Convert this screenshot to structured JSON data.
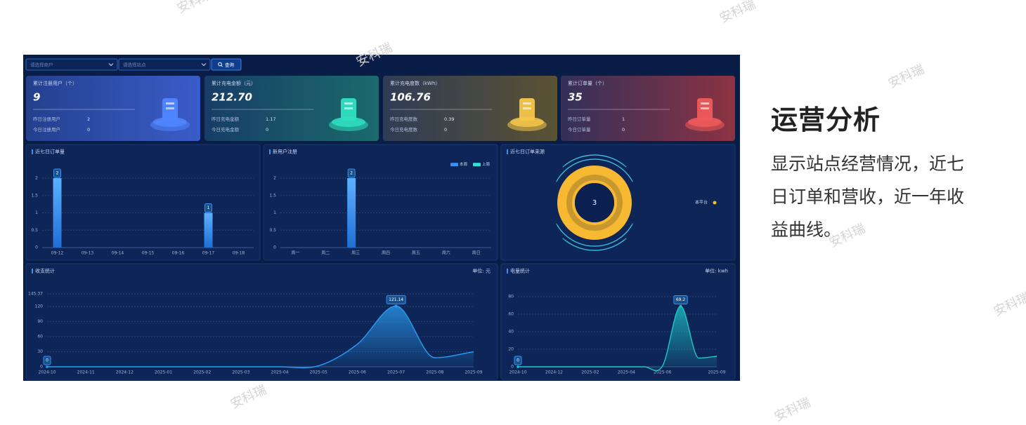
{
  "watermark": "安科瑞",
  "intro": {
    "title": "运营分析",
    "description": "显示站点经营情况，近七日订单和营收，近一年收益曲线。"
  },
  "dashboard": {
    "filters": {
      "merchant": "请选择商户",
      "station": "请选择站点",
      "query": "查询"
    },
    "stats": [
      {
        "title": "累计注册用户（个）",
        "value": "9",
        "rows": [
          {
            "label": "昨日注册用户",
            "value": "2"
          },
          {
            "label": "今日注册用户",
            "value": "0"
          }
        ]
      },
      {
        "title": "累计充电金额（元）",
        "value": "212.70",
        "rows": [
          {
            "label": "昨日充电金额",
            "value": "1.17"
          },
          {
            "label": "今日充电金额",
            "value": "0"
          }
        ]
      },
      {
        "title": "累计充电度数（kWh）",
        "value": "106.76",
        "rows": [
          {
            "label": "昨日充电度数",
            "value": "0.39"
          },
          {
            "label": "今日充电度数",
            "value": "0"
          }
        ]
      },
      {
        "title": "累计订单量（个）",
        "value": "35",
        "rows": [
          {
            "label": "昨日订单量",
            "value": "1"
          },
          {
            "label": "今日订单量",
            "value": "0"
          }
        ]
      }
    ],
    "orders_chart": {
      "type": "bar",
      "title": "近七日订单量",
      "categories": [
        "09-12",
        "09-13",
        "09-14",
        "09-15",
        "09-16",
        "09-17",
        "09-18"
      ],
      "values": [
        2,
        0,
        0,
        0,
        0,
        1,
        0
      ],
      "color": "#3d8ff0",
      "ylim": [
        0,
        2.2
      ],
      "yticks": [
        0,
        0.5,
        1,
        1.5,
        2
      ],
      "grid": true
    },
    "users_chart": {
      "type": "bar",
      "title": "新用户注册",
      "categories": [
        "周一",
        "周二",
        "周三",
        "周四",
        "周五",
        "周六",
        "周日"
      ],
      "series": [
        {
          "name": "本周",
          "color": "#3d8ff0",
          "values": [
            0,
            0,
            2,
            0,
            0,
            0,
            0
          ]
        },
        {
          "name": "上周",
          "color": "#32e0d8",
          "values": [
            0,
            0,
            0,
            0,
            0,
            0,
            0
          ]
        }
      ],
      "ylim": [
        0,
        2.2
      ],
      "yticks": [
        0,
        0.5,
        1,
        1.5,
        2
      ],
      "grid": true,
      "legend": "top-right"
    },
    "source_chart": {
      "type": "pie",
      "title": "近七日订单来源",
      "categories": [
        "本平台"
      ],
      "values": [
        3
      ],
      "colors": [
        "#f7b932"
      ],
      "legend": "right"
    },
    "income_chart": {
      "type": "line",
      "title": "收支统计",
      "unit": "单位: 元",
      "x": [
        "2024-10",
        "2024-11",
        "2024-12",
        "2025-01",
        "2025-02",
        "2025-03",
        "2025-04",
        "2025-05",
        "2025-06",
        "2025-07",
        "2025-08",
        "2025-09"
      ],
      "values": [
        0,
        0,
        0,
        0,
        0,
        0,
        0,
        2,
        45,
        121.14,
        18,
        30
      ],
      "color": "#2a9df4",
      "ylim": [
        0,
        145.37
      ],
      "yticks": [
        0,
        30,
        60,
        90,
        120,
        145.37
      ],
      "grid": true
    },
    "energy_chart": {
      "type": "line",
      "title": "电量统计",
      "unit": "单位: kwh",
      "x": [
        "2024-10",
        null,
        "2024-12",
        null,
        "2025-02",
        null,
        "2025-04",
        null,
        "2025-06",
        null,
        null,
        "2025-09"
      ],
      "values": [
        0,
        0,
        0,
        0,
        0,
        0,
        0,
        0,
        1,
        69.2,
        10,
        12
      ],
      "color": "#1fc8c8",
      "ylim": [
        0,
        90
      ],
      "yticks": [
        0,
        20,
        40,
        60,
        80
      ],
      "grid": true
    }
  }
}
